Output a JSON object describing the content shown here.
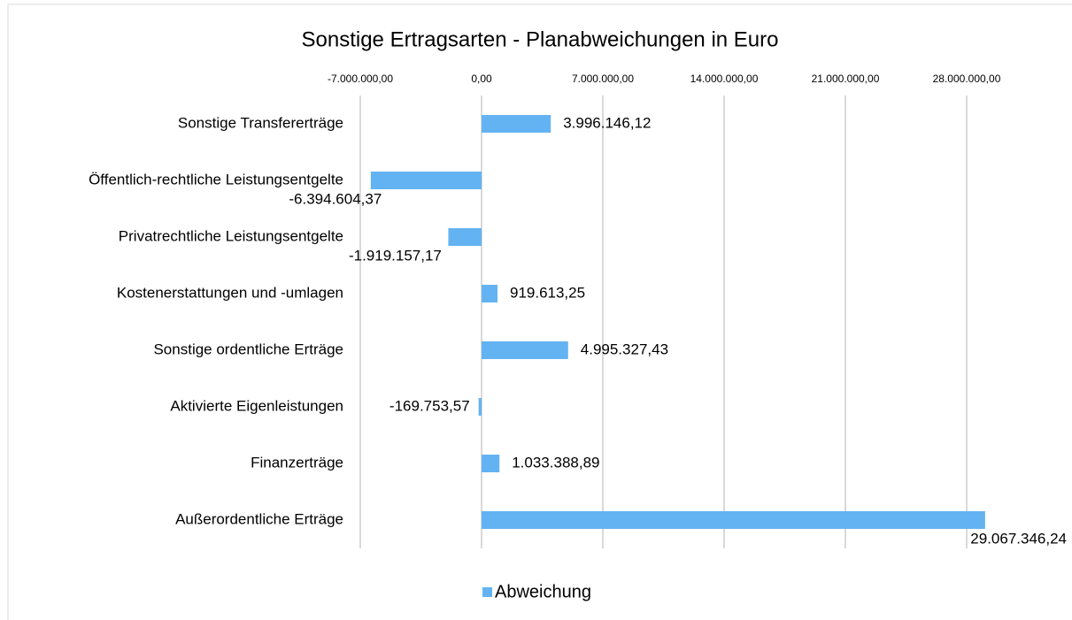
{
  "chart_data": {
    "type": "bar",
    "orientation": "horizontal",
    "title": "Sonstige Ertragsarten - Planabweichungen in Euro",
    "categories": [
      "Sonstige Transfererträge",
      "Öffentlich-rechtliche Leistungsentgelte",
      "Privatrechtliche Leistungsentgelte",
      "Kostenerstattungen und -umlagen",
      "Sonstige ordentliche Erträge",
      "Aktivierte Eigenleistungen",
      "Finanzerträge",
      "Außerordentliche Erträge"
    ],
    "series": [
      {
        "name": "Abweichung",
        "color": "#63b3f2",
        "values": [
          3996146.12,
          -6394604.37,
          -1919157.17,
          919613.25,
          4995327.43,
          -169753.57,
          1033388.89,
          29067346.24
        ],
        "value_labels": [
          "3.996.146,12",
          "-6.394.604,37",
          "-1.919.157,17",
          "919.613,25",
          "4.995.327,43",
          "-169.753,57",
          "1.033.388,89",
          "29.067.346,24"
        ]
      }
    ],
    "xlim": [
      -7000000,
      28000000
    ],
    "xticks": [
      {
        "value": -7000000,
        "label": "-7.000.000,00"
      },
      {
        "value": 0,
        "label": "0,00"
      },
      {
        "value": 7000000,
        "label": "7.000.000,00"
      },
      {
        "value": 14000000,
        "label": "14.000.000,00"
      },
      {
        "value": 21000000,
        "label": "21.000.000,00"
      },
      {
        "value": 28000000,
        "label": "28.000.000,00"
      }
    ],
    "grid": true,
    "legend": "bottom"
  }
}
